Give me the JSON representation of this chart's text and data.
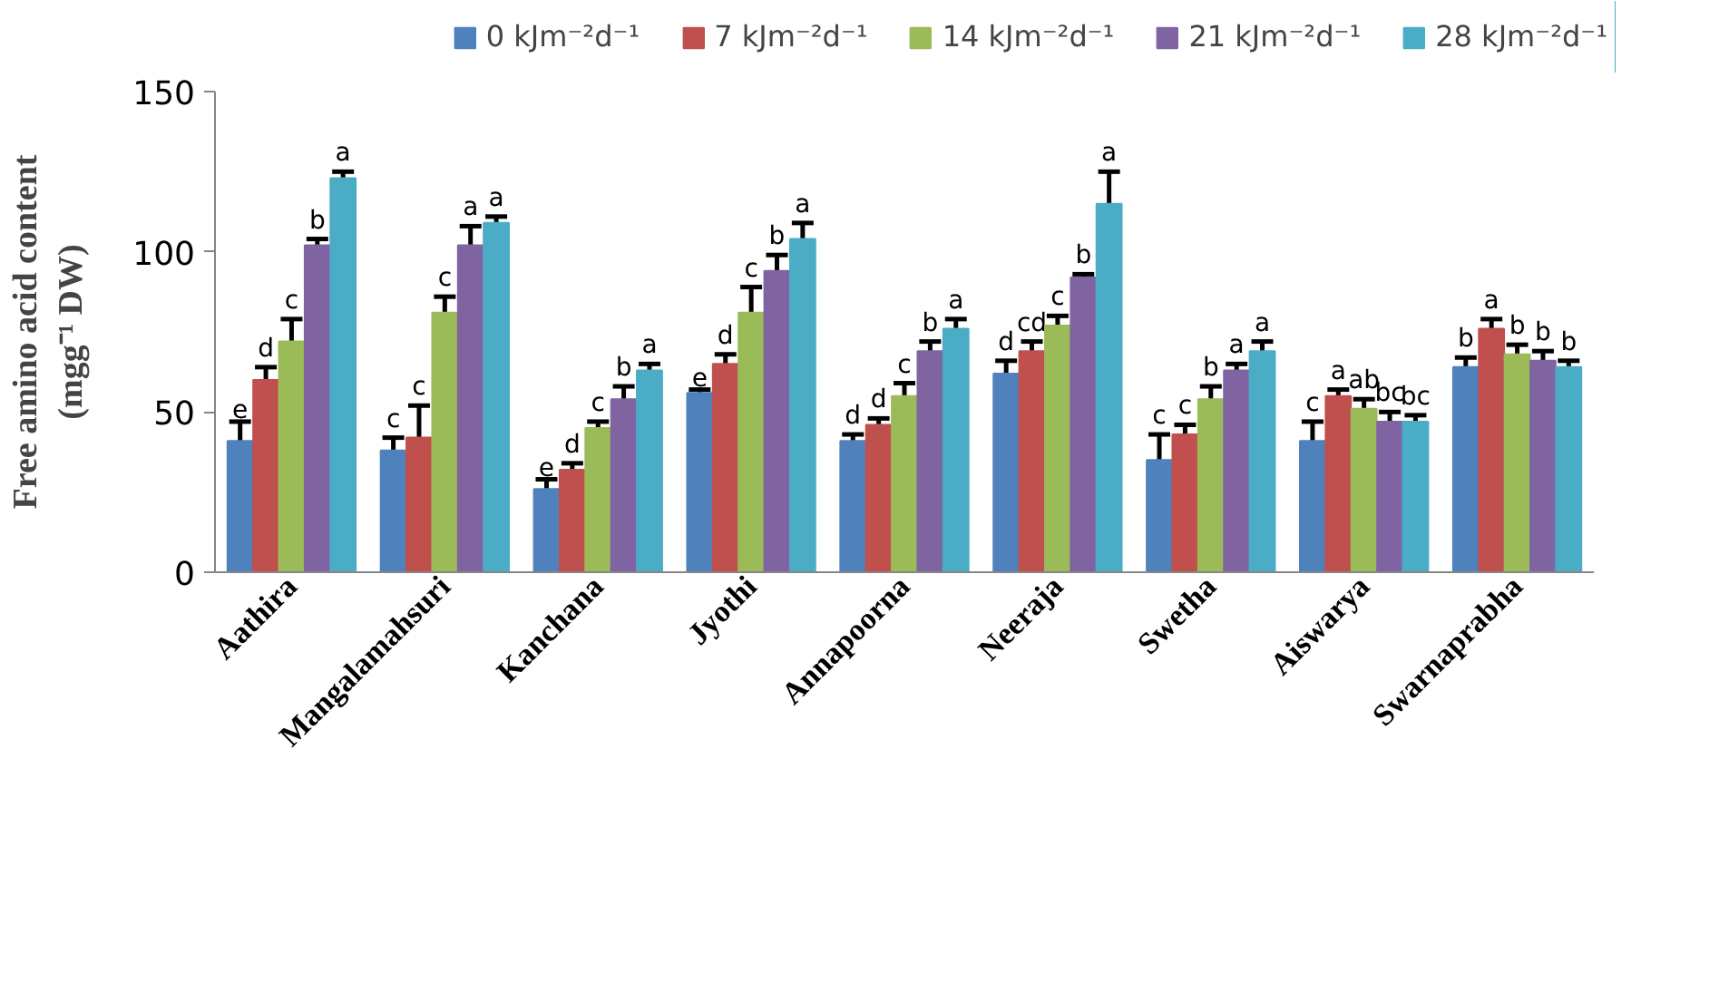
{
  "chart_data": {
    "type": "bar",
    "ylabel": "Free amino acid content\n(mgg⁻¹ DW)",
    "categories": [
      "Aathira",
      "Mangalamahsuri",
      "Kanchana",
      "Jyothi",
      "Annapoorna",
      "Neeraja",
      "Swetha",
      "Aiswarya",
      "Swarnaprabha"
    ],
    "series": [
      {
        "name": "0 kJm⁻²d⁻¹",
        "color": "#4f81bd",
        "values": [
          41,
          38,
          26,
          56,
          41,
          62,
          35,
          41,
          64
        ],
        "errors": [
          6,
          4,
          3,
          1,
          2,
          4,
          8,
          6,
          3
        ],
        "value_labels": [
          "e",
          "c",
          "e",
          "e",
          "d",
          "d",
          "c",
          "c",
          "b"
        ]
      },
      {
        "name": "7 kJm⁻²d⁻¹",
        "color": "#c0504d",
        "values": [
          60,
          42,
          32,
          65,
          46,
          69,
          43,
          55,
          76
        ],
        "errors": [
          4,
          10,
          2,
          3,
          2,
          3,
          3,
          2,
          3
        ],
        "value_labels": [
          "d",
          "c",
          "d",
          "d",
          "d",
          "cd",
          "c",
          "a",
          "a"
        ]
      },
      {
        "name": "14 kJm⁻²d⁻¹",
        "color": "#9bbb59",
        "values": [
          72,
          81,
          45,
          81,
          55,
          77,
          54,
          51,
          68
        ],
        "errors": [
          7,
          5,
          2,
          8,
          4,
          3,
          4,
          3,
          3
        ],
        "value_labels": [
          "c",
          "c",
          "c",
          "c",
          "c",
          "c",
          "b",
          "ab",
          "b"
        ]
      },
      {
        "name": "21 kJm⁻²d⁻¹",
        "color": "#8064a2",
        "values": [
          102,
          102,
          54,
          94,
          69,
          92,
          63,
          47,
          66
        ],
        "errors": [
          2,
          6,
          4,
          5,
          3,
          1,
          2,
          3,
          3
        ],
        "value_labels": [
          "b",
          "a",
          "b",
          "b",
          "b",
          "b",
          "a",
          "bc",
          "b"
        ]
      },
      {
        "name": "28 kJm⁻²d⁻¹",
        "color": "#4bacc6",
        "values": [
          123,
          109,
          63,
          104,
          76,
          115,
          69,
          47,
          64
        ],
        "errors": [
          2,
          2,
          2,
          5,
          3,
          10,
          3,
          2,
          2
        ],
        "value_labels": [
          "a",
          "a",
          "a",
          "a",
          "a",
          "a",
          "a",
          "bc",
          "b"
        ]
      }
    ],
    "ylim": [
      0,
      150
    ],
    "yticks": [
      0,
      50,
      100,
      150
    ],
    "grid": false,
    "legend": "top"
  }
}
